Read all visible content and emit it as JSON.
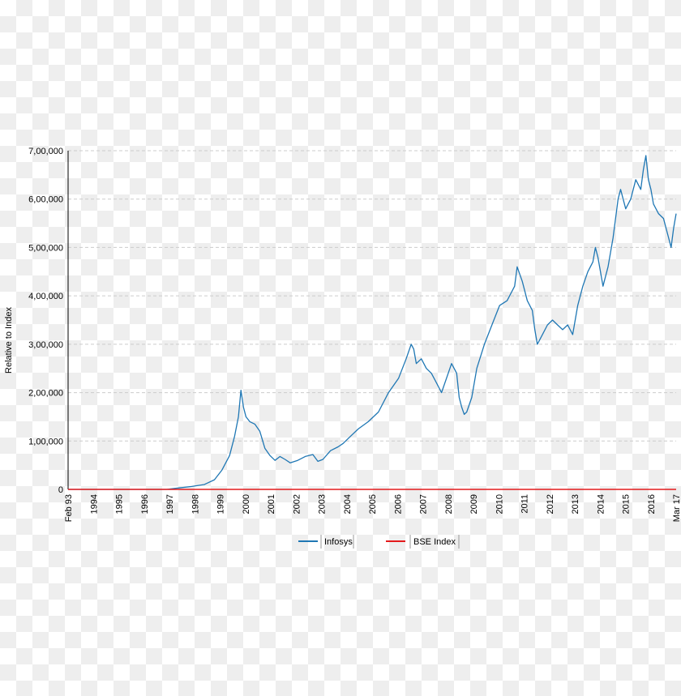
{
  "chart_data": {
    "type": "line",
    "title": "",
    "xlabel": "",
    "ylabel": "Relative to Index",
    "x_tick_labels": [
      "Feb 93",
      "1994",
      "1995",
      "1996",
      "1997",
      "1998",
      "1999",
      "2000",
      "2001",
      "2002",
      "2003",
      "2004",
      "2005",
      "2006",
      "2007",
      "2008",
      "2009",
      "2010",
      "2011",
      "2012",
      "2013",
      "2014",
      "2015",
      "2016",
      "Mar 17"
    ],
    "y_tick_labels": [
      "0",
      "1,00,000",
      "2,00,000",
      "3,00,000",
      "4,00,000",
      "5,00,000",
      "6,00,000",
      "7,00,000"
    ],
    "xlim": [
      1993.1,
      2017.2
    ],
    "ylim": [
      0,
      700000
    ],
    "grid": true,
    "legend_position": "bottom-center",
    "colors": {
      "infosys": "#1f77b4",
      "bse": "#e41a1c",
      "grid": "#cccccc"
    },
    "series": [
      {
        "name": "Infosys",
        "x": [
          1993.1,
          1995,
          1996.5,
          1997.0,
          1997.5,
          1998.0,
          1998.5,
          1998.9,
          1999.2,
          1999.5,
          1999.7,
          1999.85,
          1999.95,
          2000.05,
          2000.15,
          2000.3,
          2000.5,
          2000.7,
          2000.9,
          2001.1,
          2001.3,
          2001.5,
          2001.7,
          2001.9,
          2002.2,
          2002.5,
          2002.8,
          2003.0,
          2003.2,
          2003.5,
          2003.8,
          2004.0,
          2004.3,
          2004.6,
          2005.0,
          2005.4,
          2005.8,
          2006.2,
          2006.5,
          2006.7,
          2006.8,
          2006.9,
          2007.1,
          2007.3,
          2007.5,
          2007.7,
          2007.9,
          2008.1,
          2008.3,
          2008.5,
          2008.6,
          2008.7,
          2008.8,
          2008.9,
          2009.1,
          2009.3,
          2009.6,
          2009.9,
          2010.2,
          2010.5,
          2010.8,
          2010.9,
          2011.1,
          2011.3,
          2011.5,
          2011.6,
          2011.7,
          2011.9,
          2012.1,
          2012.3,
          2012.5,
          2012.7,
          2012.9,
          2013.1,
          2013.3,
          2013.5,
          2013.7,
          2013.9,
          2014.0,
          2014.1,
          2014.3,
          2014.5,
          2014.7,
          2014.8,
          2014.9,
          2015.0,
          2015.2,
          2015.4,
          2015.6,
          2015.8,
          2015.9,
          2016.0,
          2016.1,
          2016.2,
          2016.3,
          2016.5,
          2016.7,
          2016.9,
          2017.0,
          2017.1,
          2017.2
        ],
        "y": [
          0,
          0,
          0,
          0,
          3000,
          6000,
          10000,
          20000,
          40000,
          70000,
          110000,
          150000,
          205000,
          170000,
          150000,
          140000,
          135000,
          120000,
          85000,
          70000,
          60000,
          68000,
          62000,
          55000,
          60000,
          68000,
          72000,
          58000,
          62000,
          80000,
          88000,
          95000,
          110000,
          125000,
          140000,
          160000,
          200000,
          230000,
          270000,
          300000,
          290000,
          260000,
          270000,
          250000,
          240000,
          220000,
          200000,
          230000,
          260000,
          240000,
          190000,
          170000,
          155000,
          160000,
          190000,
          250000,
          300000,
          340000,
          380000,
          390000,
          420000,
          460000,
          430000,
          390000,
          370000,
          330000,
          300000,
          320000,
          340000,
          350000,
          340000,
          330000,
          340000,
          320000,
          380000,
          420000,
          450000,
          470000,
          500000,
          480000,
          420000,
          460000,
          520000,
          560000,
          600000,
          620000,
          580000,
          600000,
          640000,
          620000,
          660000,
          690000,
          640000,
          620000,
          590000,
          570000,
          560000,
          520000,
          500000,
          540000,
          570000
        ]
      },
      {
        "name": "BSE Index",
        "x": [
          1993.1,
          2017.2
        ],
        "y": [
          0,
          0
        ]
      }
    ]
  }
}
